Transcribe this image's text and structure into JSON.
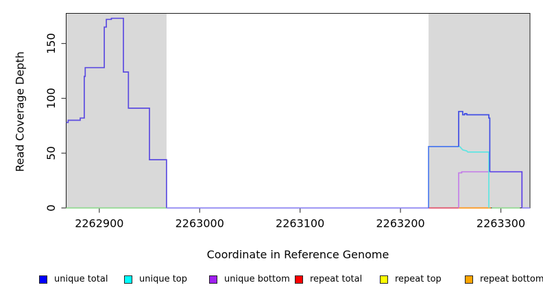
{
  "figure": {
    "background": "#ffffff",
    "plot_background": "#ffffff",
    "shaded_color": "#d9d9d9"
  },
  "chart_data": {
    "type": "step-line",
    "title": "",
    "xlabel": "Coordinate in Reference Genome",
    "ylabel": "Read Coverage Depth",
    "x_axis": {
      "range": [
        2262867,
        2263329
      ],
      "ticks": [
        2262900,
        2263000,
        2263100,
        2263200,
        2263300
      ]
    },
    "y_axis": {
      "range": [
        0,
        177.5
      ],
      "ticks": [
        0,
        50,
        100,
        150
      ]
    },
    "grid": false,
    "legend_position": "bottom",
    "shaded_regions": [
      {
        "name": "masked-region-left",
        "from": 2262867,
        "to": 2262967,
        "color": "#d9d9d9"
      },
      {
        "name": "masked-region-right",
        "from": 2263228,
        "to": 2263329,
        "color": "#d9d9d9"
      }
    ],
    "series": [
      {
        "name": "baseline-green-left",
        "color": "#8fd98f",
        "points": [
          [
            2262867,
            0
          ],
          [
            2262967,
            0
          ]
        ]
      },
      {
        "name": "baseline-green-right",
        "color": "#8fd98f",
        "points": [
          [
            2263291,
            0
          ],
          [
            2263319,
            0
          ]
        ]
      },
      {
        "name": "repeat-total-baseline",
        "color": "#e04f68",
        "points": [
          [
            2263228,
            0
          ],
          [
            2263258,
            0
          ]
        ]
      },
      {
        "name": "repeat-bottom-baseline",
        "color": "#ff9517",
        "points": [
          [
            2263258,
            0
          ],
          [
            2263290,
            0
          ]
        ]
      },
      {
        "name": "unique-bottom",
        "color": "#c47ee8",
        "points": [
          [
            2263258,
            0
          ],
          [
            2263258,
            32
          ],
          [
            2263261,
            32
          ],
          [
            2263261,
            33
          ],
          [
            2263321,
            33
          ],
          [
            2263321,
            0
          ]
        ]
      },
      {
        "name": "unique-top",
        "color": "#5ee5e2",
        "points": [
          [
            2263257,
            56
          ],
          [
            2263259,
            56
          ],
          [
            2263260,
            55
          ],
          [
            2263262,
            53
          ],
          [
            2263266,
            52
          ],
          [
            2263267,
            51
          ],
          [
            2263288,
            51
          ],
          [
            2263288,
            0
          ]
        ]
      },
      {
        "name": "unique-total-left",
        "color": "#5b4be0",
        "points": [
          [
            2262867,
            78
          ],
          [
            2262869,
            78
          ],
          [
            2262869,
            80
          ],
          [
            2262881,
            80
          ],
          [
            2262881,
            82
          ],
          [
            2262885,
            82
          ],
          [
            2262885,
            120
          ],
          [
            2262886,
            120
          ],
          [
            2262886,
            128
          ],
          [
            2262905,
            128
          ],
          [
            2262905,
            165
          ],
          [
            2262907,
            165
          ],
          [
            2262907,
            172
          ],
          [
            2262912,
            172
          ],
          [
            2262912,
            173
          ],
          [
            2262924,
            173
          ],
          [
            2262924,
            124
          ],
          [
            2262929,
            124
          ],
          [
            2262929,
            91
          ],
          [
            2262950,
            91
          ],
          [
            2262950,
            44
          ],
          [
            2262967,
            44
          ],
          [
            2262967,
            0
          ]
        ]
      },
      {
        "name": "unique-total-baseline-mid",
        "color": "#8a82f2",
        "points": [
          [
            2262967,
            0
          ],
          [
            2263228,
            0
          ]
        ]
      },
      {
        "name": "unique-total-rise",
        "color": "#4b79ee",
        "points": [
          [
            2263228,
            0
          ],
          [
            2263228,
            56
          ],
          [
            2263258,
            56
          ]
        ]
      },
      {
        "name": "unique-total-right-top",
        "color": "#3f4ce4",
        "points": [
          [
            2263258,
            56
          ],
          [
            2263258,
            88
          ],
          [
            2263262,
            88
          ],
          [
            2263262,
            85
          ],
          [
            2263264,
            85
          ],
          [
            2263264,
            86
          ],
          [
            2263266,
            86
          ],
          [
            2263266,
            85
          ],
          [
            2263288,
            85
          ],
          [
            2263288,
            82
          ],
          [
            2263289,
            82
          ],
          [
            2263289,
            33
          ]
        ]
      },
      {
        "name": "unique-total-right-plateau",
        "color": "#5c44e6",
        "points": [
          [
            2263289,
            33
          ],
          [
            2263321,
            33
          ],
          [
            2263321,
            0
          ]
        ]
      },
      {
        "name": "unique-total-baseline-right",
        "color": "#8a82f2",
        "points": [
          [
            2263321,
            0
          ],
          [
            2263329,
            0
          ]
        ]
      }
    ],
    "legend": [
      {
        "label": "unique total",
        "color": "#0000ff"
      },
      {
        "label": "unique top",
        "color": "#00ffff"
      },
      {
        "label": "unique bottom",
        "color": "#a020f0"
      },
      {
        "label": "repeat total",
        "color": "#ff0000"
      },
      {
        "label": "repeat top",
        "color": "#ffff00"
      },
      {
        "label": "repeat bottom",
        "color": "#ffa500"
      }
    ]
  }
}
